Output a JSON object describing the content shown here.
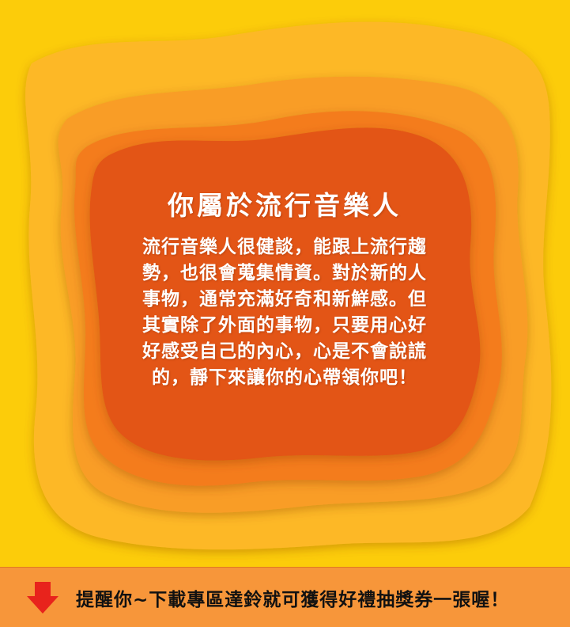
{
  "card": {
    "title": "你屬於流行音樂人",
    "body": "流行音樂人很健談，能跟上流行趨勢，也很會蒐集情資。對於新的人事物，通常充滿好奇和新鮮感。但其實除了外面的事物，只要用心好好感受自己的內心，心是不會說謊的，靜下來讓你的心帶領你吧！"
  },
  "footer": {
    "reminder": "提醒你~下載專區達鈴就可獲得好禮抽獎券一張喔！",
    "arrow_icon": "down-arrow-icon"
  },
  "colors": {
    "background": "#fccc0a",
    "layer_1": "#fdb827",
    "layer_2": "#f99d25",
    "layer_3": "#f47c1c",
    "layer_4": "#e35414",
    "footer": "#f7963a",
    "arrow": "#e8231c"
  }
}
